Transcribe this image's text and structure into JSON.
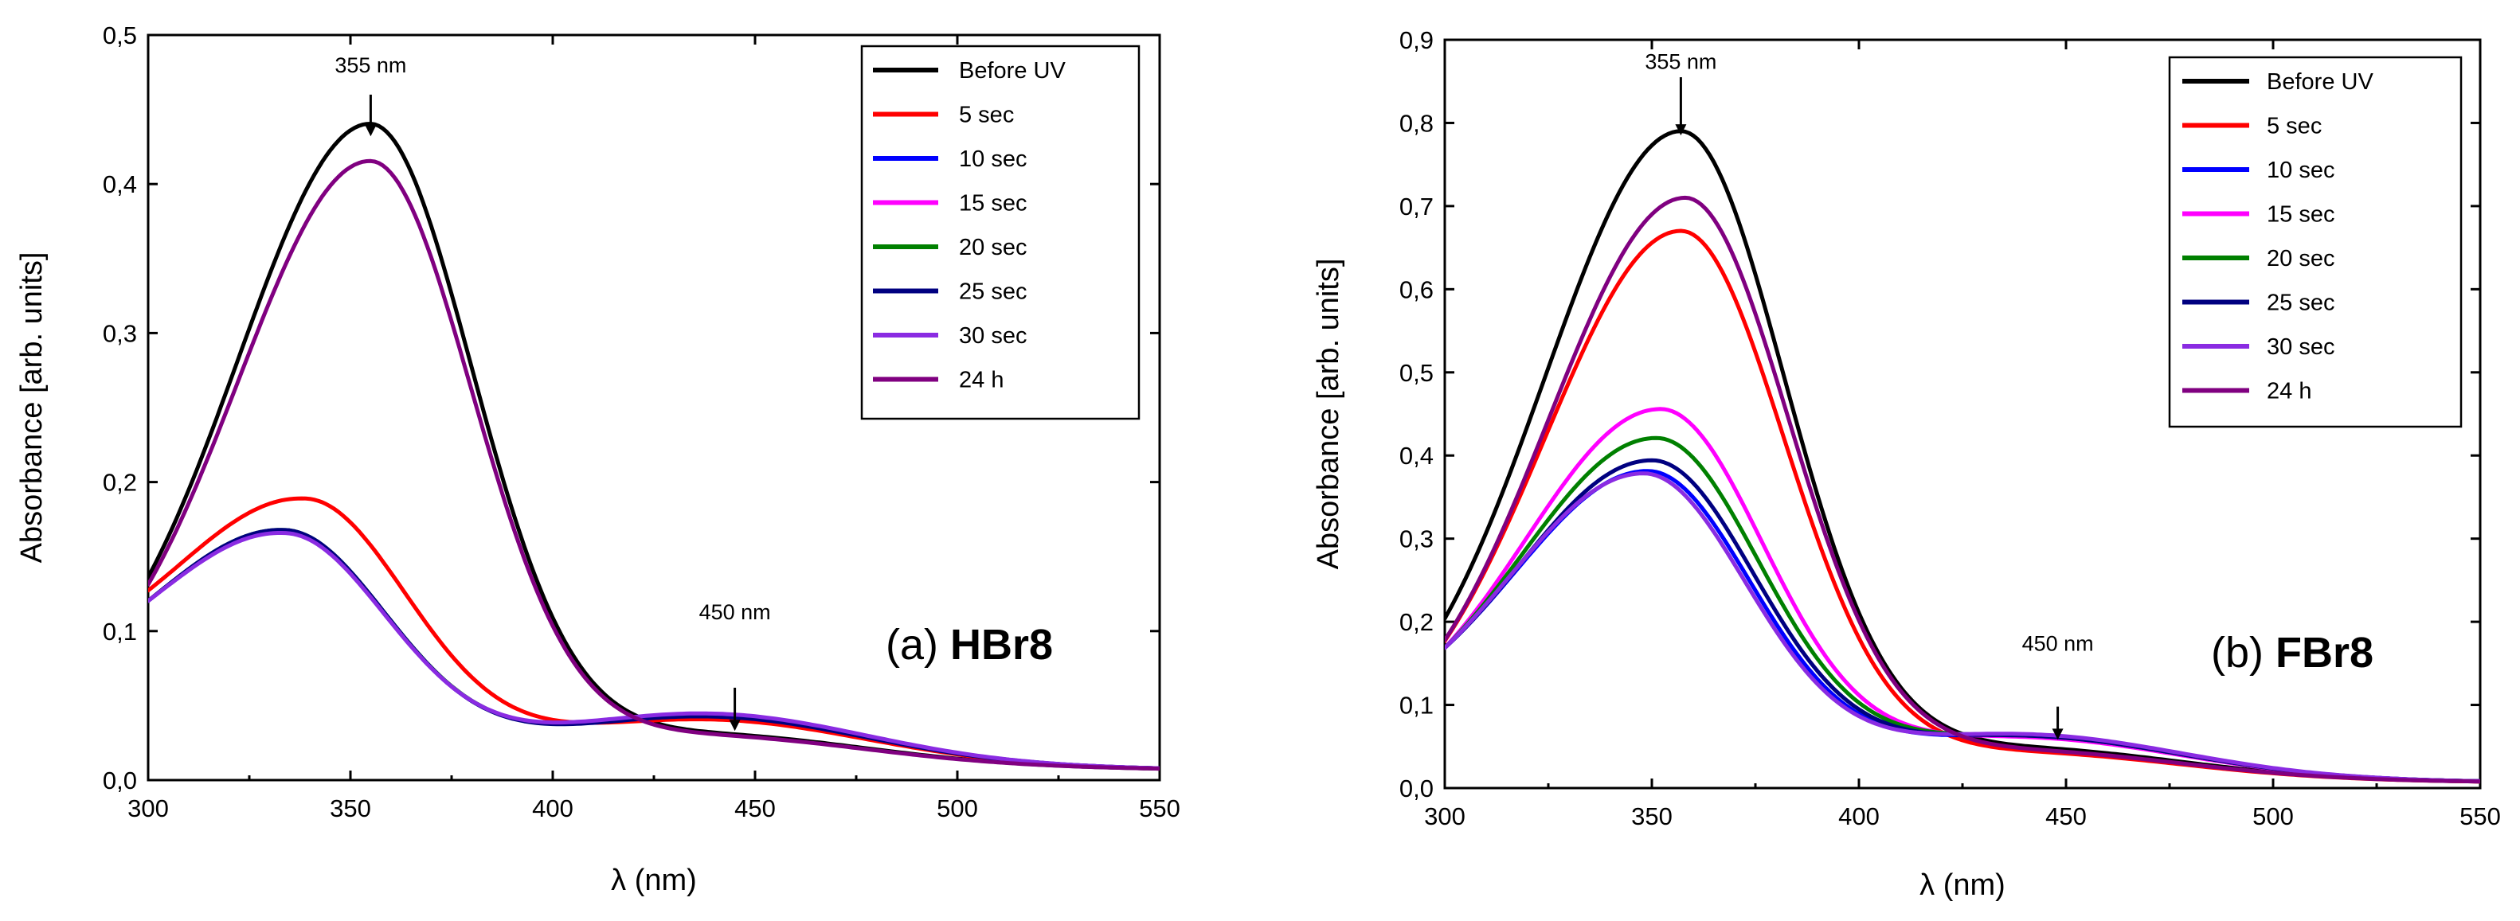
{
  "chart_data": [
    {
      "type": "line",
      "panel": "a",
      "label_prefix": "(a) ",
      "label_bold": "HBr8",
      "xlabel": "λ (nm)",
      "ylabel": "Absorbance [arb. units]",
      "xlim": [
        300,
        550
      ],
      "ylim": [
        0,
        0.5
      ],
      "xticks": [
        300,
        350,
        400,
        450,
        500,
        550
      ],
      "xtick_labels": [
        "300",
        "350",
        "400",
        "450",
        "500",
        "550"
      ],
      "yticks": [
        0,
        0.1,
        0.2,
        0.3,
        0.4,
        0.5
      ],
      "ytick_labels": [
        "0,0",
        "0,1",
        "0,2",
        "0,3",
        "0,4",
        "0,5"
      ],
      "legend_position": "top-right",
      "annotations": [
        {
          "text": "355 nm",
          "x": 355,
          "y_arrow_tip": 0.432,
          "y_arrow_start": 0.46,
          "y_text": 0.475
        },
        {
          "text": "450 nm",
          "x": 445,
          "y_arrow_tip": 0.033,
          "y_arrow_start": 0.062,
          "y_text": 0.108
        }
      ],
      "series": [
        {
          "name": "Before UV",
          "color": "#000000",
          "peak_x": 355,
          "peak_y": 0.425,
          "band2_y": 0.018,
          "y300": 0.117
        },
        {
          "name": "5 sec",
          "color": "#ff0000",
          "peak_x": 339,
          "peak_y": 0.171,
          "band2_y": 0.028,
          "y300": 0.108
        },
        {
          "name": "10 sec",
          "color": "#0000ff",
          "peak_x": 334,
          "peak_y": 0.148,
          "band2_y": 0.031,
          "y300": 0.101
        },
        {
          "name": "15 sec",
          "color": "#ff00ff",
          "peak_x": 334,
          "peak_y": 0.148,
          "band2_y": 0.031,
          "y300": 0.101
        },
        {
          "name": "20 sec",
          "color": "#008000",
          "peak_x": 334,
          "peak_y": 0.149,
          "band2_y": 0.031,
          "y300": 0.101
        },
        {
          "name": "25 sec",
          "color": "#000080",
          "peak_x": 334,
          "peak_y": 0.149,
          "band2_y": 0.03,
          "y300": 0.101
        },
        {
          "name": "30 sec",
          "color": "#8a2be2",
          "peak_x": 334,
          "peak_y": 0.147,
          "band2_y": 0.032,
          "y300": 0.101
        },
        {
          "name": "24 h",
          "color": "#800080",
          "peak_x": 355,
          "peak_y": 0.4,
          "band2_y": 0.017,
          "y300": 0.112
        }
      ]
    },
    {
      "type": "line",
      "panel": "b",
      "label_prefix": "(b) ",
      "label_bold": "FBr8",
      "xlabel": "λ (nm)",
      "ylabel": "Absorbance [arb. units]",
      "xlim": [
        300,
        550
      ],
      "ylim": [
        0,
        0.9
      ],
      "xticks": [
        300,
        350,
        400,
        450,
        500,
        550
      ],
      "xtick_labels": [
        "300",
        "350",
        "400",
        "450",
        "500",
        "550"
      ],
      "yticks": [
        0,
        0.1,
        0.2,
        0.3,
        0.4,
        0.5,
        0.6,
        0.7,
        0.8,
        0.9
      ],
      "ytick_labels": [
        "0,0",
        "0,1",
        "0,2",
        "0,3",
        "0,4",
        "0,5",
        "0,6",
        "0,7",
        "0,8",
        "0,9"
      ],
      "legend_position": "top-right",
      "annotations": [
        {
          "text": "355 nm",
          "x": 357,
          "y_arrow_tip": 0.785,
          "y_arrow_start": 0.855,
          "y_text": 0.865
        },
        {
          "text": "450 nm",
          "x": 448,
          "y_arrow_tip": 0.058,
          "y_arrow_start": 0.098,
          "y_text": 0.165
        }
      ],
      "series": [
        {
          "name": "Before UV",
          "color": "#000000",
          "peak_x": 357,
          "peak_y": 0.775,
          "band2_y": 0.035,
          "y300": 0.155
        },
        {
          "name": "5 sec",
          "color": "#ff0000",
          "peak_x": 357,
          "peak_y": 0.655,
          "band2_y": 0.03,
          "y300": 0.15
        },
        {
          "name": "10 sec",
          "color": "#0000ff",
          "peak_x": 349,
          "peak_y": 0.365,
          "band2_y": 0.05,
          "y300": 0.15
        },
        {
          "name": "15 sec",
          "color": "#ff00ff",
          "peak_x": 352,
          "peak_y": 0.44,
          "band2_y": 0.048,
          "y300": 0.15
        },
        {
          "name": "20 sec",
          "color": "#008000",
          "peak_x": 351,
          "peak_y": 0.405,
          "band2_y": 0.05,
          "y300": 0.15
        },
        {
          "name": "25 sec",
          "color": "#000080",
          "peak_x": 350,
          "peak_y": 0.378,
          "band2_y": 0.05,
          "y300": 0.15
        },
        {
          "name": "30 sec",
          "color": "#8a2be2",
          "peak_x": 348,
          "peak_y": 0.362,
          "band2_y": 0.052,
          "y300": 0.15
        },
        {
          "name": "24 h",
          "color": "#800080",
          "peak_x": 358,
          "peak_y": 0.695,
          "band2_y": 0.032,
          "y300": 0.152
        }
      ]
    }
  ]
}
